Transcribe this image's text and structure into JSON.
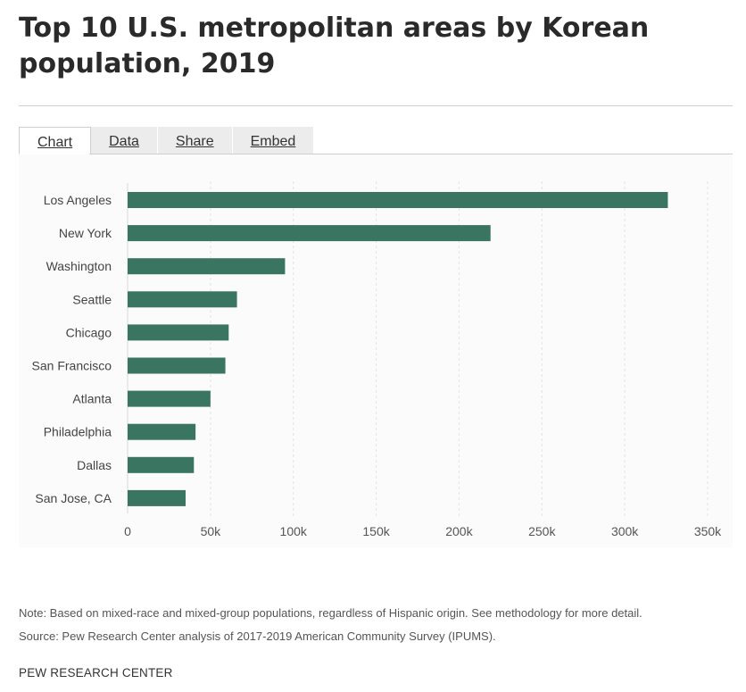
{
  "title": "Top 10 U.S. metropolitan areas by Korean population, 2019",
  "tabs": [
    {
      "label": "Chart",
      "active": true
    },
    {
      "label": "Data",
      "active": false
    },
    {
      "label": "Share",
      "active": false
    },
    {
      "label": "Embed",
      "active": false
    }
  ],
  "note": "Note: Based on mixed-race and mixed-group populations, regardless of Hispanic origin. See methodology for more detail.",
  "source": "Source: Pew Research Center analysis of 2017-2019 American Community Survey (IPUMS).",
  "footer": "PEW RESEARCH CENTER",
  "colors": {
    "bar": "#3a7562",
    "grid": "#e4e4e4"
  },
  "chart_data": {
    "type": "bar",
    "orientation": "horizontal",
    "categories": [
      "Los Angeles",
      "New York",
      "Washington",
      "Seattle",
      "Chicago",
      "San Francisco",
      "Atlanta",
      "Philadelphia",
      "Dallas",
      "San Jose, CA"
    ],
    "values": [
      326000,
      219000,
      95000,
      66000,
      61000,
      59000,
      50000,
      41000,
      40000,
      35000
    ],
    "xlim": [
      0,
      350000
    ],
    "xticks": [
      0,
      50000,
      100000,
      150000,
      200000,
      250000,
      300000,
      350000
    ],
    "xtick_labels": [
      "0",
      "50k",
      "100k",
      "150k",
      "200k",
      "250k",
      "300k",
      "350k"
    ],
    "grid": "vertical-dashed",
    "xlabel": "",
    "ylabel": ""
  }
}
